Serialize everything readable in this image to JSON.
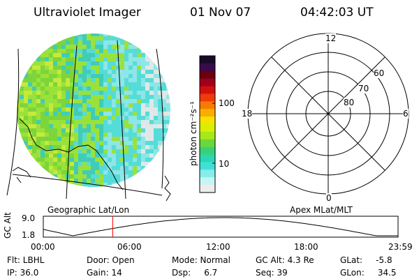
{
  "header": {
    "title": "Ultraviolet Imager",
    "date": "01 Nov 07",
    "time": "04:42:03 UT"
  },
  "colorbar": {
    "unit_label": "photon cm⁻²s⁻¹",
    "ticks": [
      "100",
      "10"
    ],
    "colors": [
      "#1a0a2a",
      "#3a0a4a",
      "#6a0010",
      "#a0001a",
      "#d01010",
      "#f03a0a",
      "#f87a00",
      "#f8b000",
      "#f8e000",
      "#d8f000",
      "#a8e81a",
      "#6ad83a",
      "#3ad07a",
      "#2ad8b0",
      "#40e0d8",
      "#88ecec",
      "#c8f4f4",
      "#ececec"
    ]
  },
  "map": {
    "label": "Geographic Lat/Lon",
    "palette": [
      "#7cd53a",
      "#9ae23a",
      "#c6ea3a",
      "#40ccb8",
      "#56dcd8",
      "#8ee6e6",
      "#dfe8e8"
    ]
  },
  "polar": {
    "label": "Apex MLat/MLT",
    "mlt_labels": {
      "top": "12",
      "bottom": "0",
      "left": "18",
      "right": "6"
    },
    "lat_labels": [
      "60",
      "70",
      "80"
    ]
  },
  "altitude_plot": {
    "ylabel": "GC Alt",
    "yticks": [
      "9.0",
      "1.8"
    ],
    "xticks": [
      "00:00",
      "06:00",
      "12:00",
      "18:00",
      "23:59"
    ],
    "marker_color": "#ff0000",
    "current_time_hours": 4.7
  },
  "status": {
    "flt": "Flt: LBHL",
    "ip": "IP: 36.0",
    "door": "Door: Open",
    "gain": "Gain: 14",
    "mode": "Mode: Normal",
    "dsp": "Dsp:     6.7",
    "gcalt": "GC Alt: 4.3 Re",
    "seq": "Seq: 39",
    "glat": "GLat:     -5.8",
    "glon": "GLon:     34.5"
  }
}
